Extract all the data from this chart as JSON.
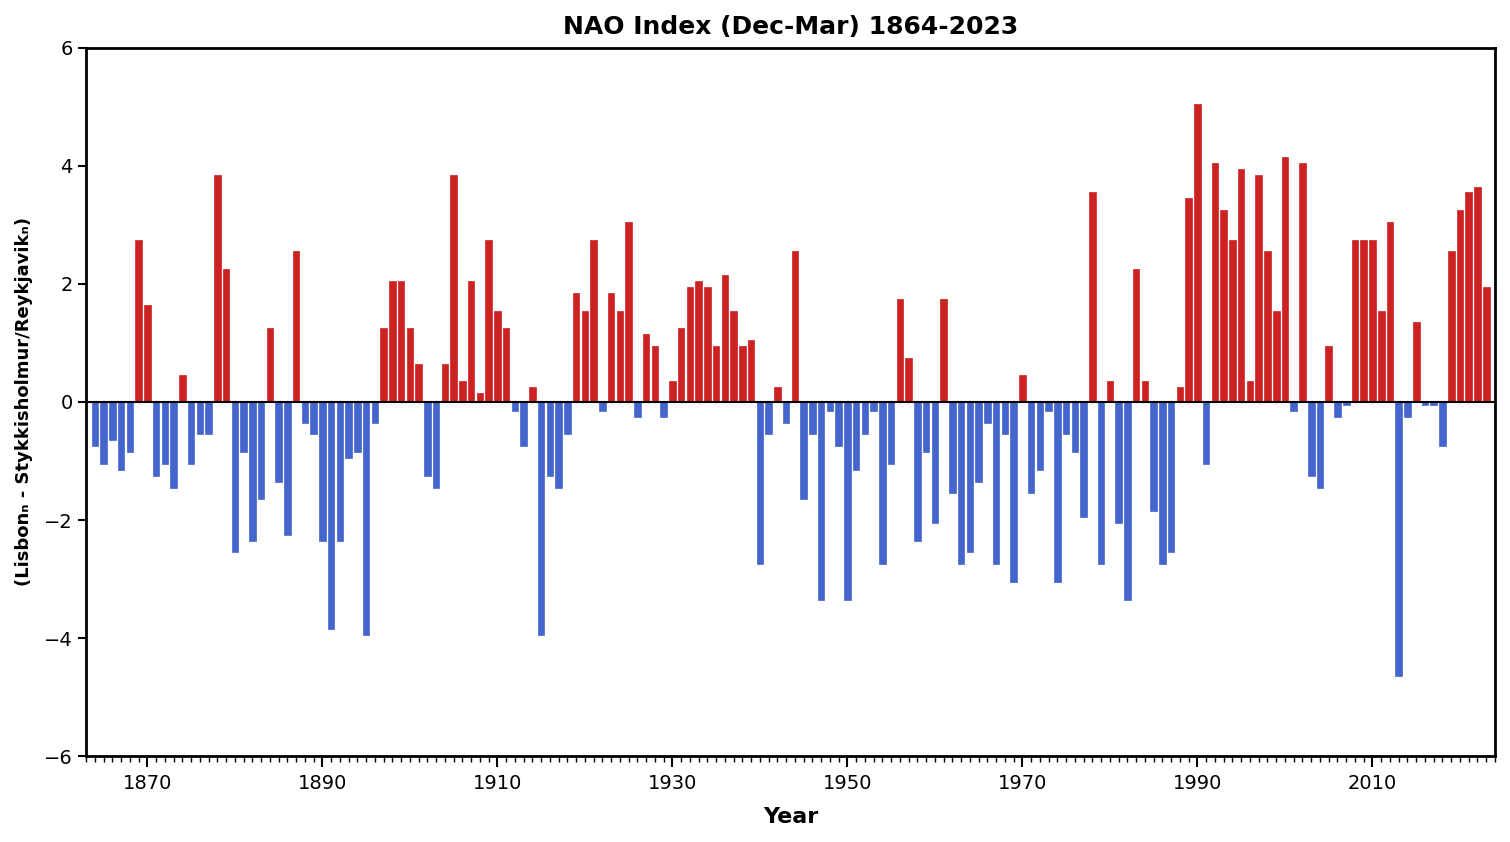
{
  "title": "NAO Index (Dec-Mar) 1864-2023",
  "ylabel": "(Lisbonₙ - Stykkisholmur/Reykjavikₙ)",
  "xlabel": "Year",
  "ylim": [
    -6,
    6
  ],
  "yticks": [
    -6,
    -4,
    -2,
    0,
    2,
    4,
    6
  ],
  "xtick_major": [
    1870,
    1890,
    1910,
    1930,
    1950,
    1970,
    1990,
    2010
  ],
  "color_pos": "#cc2222",
  "color_neg": "#4466cc",
  "years": [
    1864,
    1865,
    1866,
    1867,
    1868,
    1869,
    1870,
    1871,
    1872,
    1873,
    1874,
    1875,
    1876,
    1877,
    1878,
    1879,
    1880,
    1881,
    1882,
    1883,
    1884,
    1885,
    1886,
    1887,
    1888,
    1889,
    1890,
    1891,
    1892,
    1893,
    1894,
    1895,
    1896,
    1897,
    1898,
    1899,
    1900,
    1901,
    1902,
    1903,
    1904,
    1905,
    1906,
    1907,
    1908,
    1909,
    1910,
    1911,
    1912,
    1913,
    1914,
    1915,
    1916,
    1917,
    1918,
    1919,
    1920,
    1921,
    1922,
    1923,
    1924,
    1925,
    1926,
    1927,
    1928,
    1929,
    1930,
    1931,
    1932,
    1933,
    1934,
    1935,
    1936,
    1937,
    1938,
    1939,
    1940,
    1941,
    1942,
    1943,
    1944,
    1945,
    1946,
    1947,
    1948,
    1949,
    1950,
    1951,
    1952,
    1953,
    1954,
    1955,
    1956,
    1957,
    1958,
    1959,
    1960,
    1961,
    1962,
    1963,
    1964,
    1965,
    1966,
    1967,
    1968,
    1969,
    1970,
    1971,
    1972,
    1973,
    1974,
    1975,
    1976,
    1977,
    1978,
    1979,
    1980,
    1981,
    1982,
    1983,
    1984,
    1985,
    1986,
    1987,
    1988,
    1989,
    1990,
    1991,
    1992,
    1993,
    1994,
    1995,
    1996,
    1997,
    1998,
    1999,
    2000,
    2001,
    2002,
    2003,
    2004,
    2005,
    2006,
    2007,
    2008,
    2009,
    2010,
    2011,
    2012,
    2013,
    2014,
    2015,
    2016,
    2017,
    2018,
    2019,
    2020,
    2021,
    2022,
    2023
  ],
  "values": [
    -0.75,
    -1.05,
    -0.65,
    -1.15,
    -0.85,
    2.75,
    1.65,
    -1.25,
    -1.05,
    -1.45,
    0.45,
    -1.05,
    -0.55,
    -0.55,
    3.85,
    2.25,
    -2.55,
    -0.85,
    -2.35,
    -1.65,
    1.25,
    -1.35,
    -2.25,
    2.55,
    -0.35,
    -0.55,
    -2.35,
    -3.85,
    -2.35,
    -0.95,
    -0.85,
    -3.95,
    -0.35,
    1.25,
    2.05,
    2.05,
    1.25,
    0.65,
    -1.25,
    -1.45,
    0.65,
    3.85,
    0.35,
    2.05,
    0.15,
    2.75,
    1.55,
    1.25,
    -0.15,
    -0.75,
    0.25,
    -3.95,
    -1.25,
    -1.45,
    -0.55,
    1.85,
    1.55,
    2.75,
    -0.15,
    1.85,
    1.55,
    3.05,
    -0.25,
    1.15,
    0.95,
    -0.25,
    0.35,
    1.25,
    1.95,
    2.05,
    1.95,
    0.95,
    2.15,
    1.55,
    0.95,
    1.05,
    -2.75,
    -0.55,
    0.25,
    -0.35,
    2.55,
    -1.65,
    -0.55,
    -3.35,
    -0.15,
    -0.75,
    -3.35,
    -1.15,
    -0.55,
    -0.15,
    -2.75,
    -1.05,
    1.75,
    0.75,
    -2.35,
    -0.85,
    -2.05,
    1.75,
    -1.55,
    -2.75,
    -2.55,
    -1.35,
    -0.35,
    -2.75,
    -0.55,
    -3.05,
    0.45,
    -1.55,
    -1.15,
    -0.15,
    -3.05,
    -0.55,
    -0.85,
    -1.95,
    3.55,
    -2.75,
    0.35,
    -2.05,
    -3.35,
    2.25,
    0.35,
    -1.85,
    -2.75,
    -2.55,
    0.25,
    3.45,
    5.05,
    -1.05,
    4.05,
    3.25,
    2.75,
    3.95,
    0.35,
    3.85,
    2.55,
    1.55,
    4.15,
    -0.15,
    4.05,
    -1.25,
    -1.45,
    0.95,
    -0.25,
    -0.05,
    2.75,
    2.75,
    2.75,
    1.55,
    3.05,
    -4.65,
    -0.25,
    1.35,
    -0.05,
    -0.05,
    -0.75,
    2.55,
    3.25,
    3.55,
    3.65,
    1.95
  ]
}
